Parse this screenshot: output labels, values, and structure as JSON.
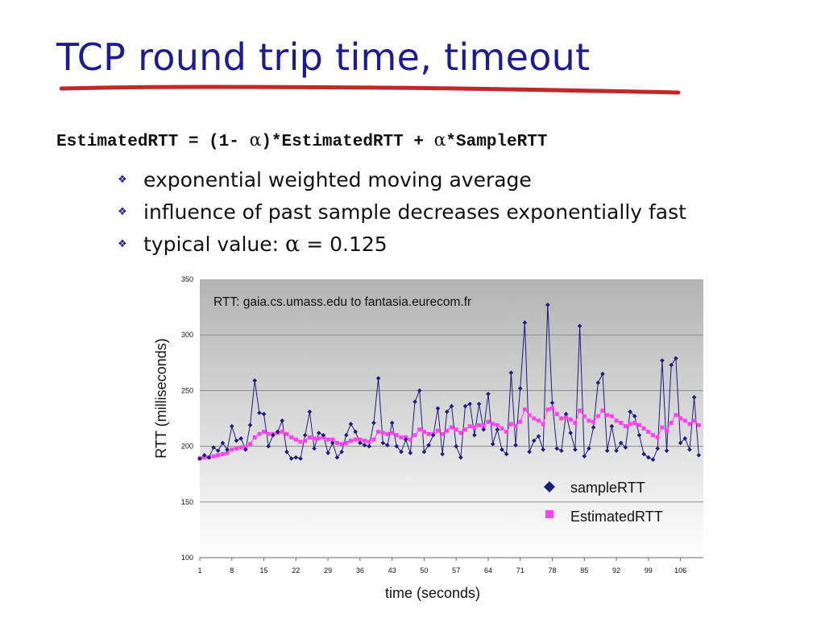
{
  "slide": {
    "title": "TCP round trip time, timeout",
    "formula": {
      "part1": "EstimatedRTT = (1- ",
      "alpha": "α",
      "part2": ")*EstimatedRTT + ",
      "alpha2": "α",
      "part3": "*SampleRTT"
    },
    "bullets": [
      {
        "text": "exponential weighted moving average"
      },
      {
        "text": "influence of past sample decreases exponentially fast"
      },
      {
        "text_before": "typical value: ",
        "alpha": "α",
        "text_after": "  = 0.125"
      }
    ],
    "bullet_icon": "diamond-cross-icon",
    "colors": {
      "title": "#1c1c8c",
      "underline": "#c0282c"
    }
  },
  "chart_data": {
    "type": "line",
    "annotation": "RTT: gaia.cs.umass.edu to fantasia.eurecom.fr",
    "xlabel": "time (seconds)",
    "ylabel": "RTT  (milliseconds)",
    "ylim": [
      100,
      350
    ],
    "xlim": [
      1,
      111
    ],
    "yticks": [
      100,
      150,
      200,
      250,
      300,
      350
    ],
    "xticks": [
      1,
      8,
      15,
      22,
      29,
      36,
      43,
      50,
      57,
      64,
      71,
      78,
      85,
      92,
      99,
      106
    ],
    "grid": true,
    "legend": "lower-right",
    "series": [
      {
        "name": "sampleRTT",
        "color": "#1c1c7c",
        "marker": "diamond",
        "values": [
          189,
          192,
          190,
          199,
          196,
          203,
          197,
          218,
          205,
          207,
          197,
          219,
          259,
          230,
          229,
          200,
          210,
          213,
          223,
          195,
          189,
          190,
          189,
          210,
          231,
          198,
          212,
          210,
          194,
          203,
          190,
          195,
          210,
          220,
          213,
          203,
          201,
          200,
          221,
          261,
          203,
          201,
          221,
          200,
          195,
          206,
          194,
          240,
          250,
          195,
          201,
          210,
          234,
          193,
          231,
          236,
          200,
          190,
          236,
          238,
          210,
          238,
          215,
          247,
          202,
          215,
          197,
          193,
          266,
          201,
          252,
          311,
          195,
          205,
          209,
          197,
          327,
          239,
          198,
          196,
          229,
          212,
          197,
          308,
          191,
          198,
          217,
          257,
          265,
          196,
          218,
          196,
          203,
          199,
          231,
          227,
          210,
          193,
          190,
          188,
          198,
          277,
          196,
          273,
          279,
          203,
          207,
          197,
          244,
          192
        ]
      },
      {
        "name": "EstimatedRTT",
        "color": "#ff44ee",
        "marker": "square",
        "values": [
          189,
          190,
          190,
          191,
          192,
          193,
          194,
          197,
          198,
          199,
          199,
          202,
          208,
          211,
          213,
          211,
          211,
          212,
          213,
          211,
          208,
          206,
          204,
          205,
          208,
          207,
          207,
          208,
          206,
          206,
          203,
          202,
          203,
          205,
          206,
          206,
          205,
          204,
          206,
          213,
          212,
          211,
          212,
          210,
          208,
          208,
          206,
          210,
          215,
          213,
          211,
          211,
          214,
          211,
          214,
          217,
          215,
          212,
          215,
          218,
          217,
          219,
          218,
          222,
          220,
          219,
          216,
          213,
          220,
          218,
          222,
          233,
          228,
          225,
          223,
          220,
          233,
          234,
          229,
          225,
          226,
          224,
          221,
          232,
          227,
          223,
          222,
          227,
          232,
          228,
          227,
          223,
          221,
          218,
          220,
          221,
          219,
          216,
          213,
          210,
          208,
          217,
          214,
          221,
          228,
          225,
          223,
          220,
          223,
          219
        ]
      }
    ]
  }
}
